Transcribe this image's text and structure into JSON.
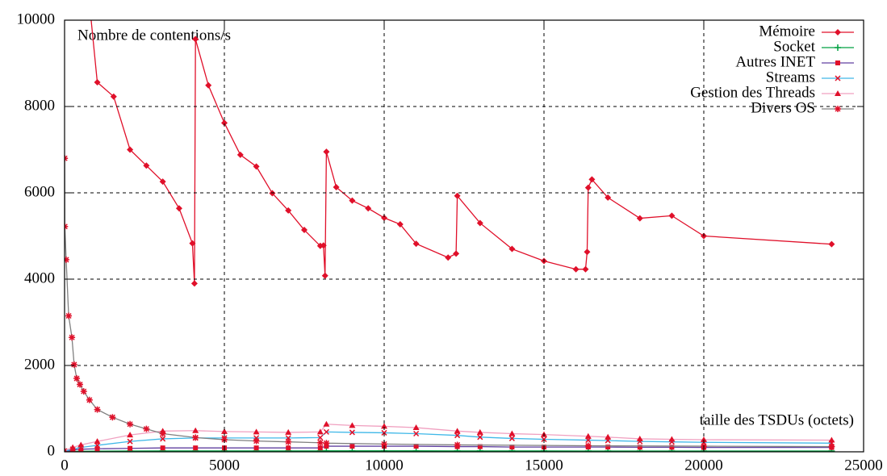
{
  "chart_data": {
    "type": "line",
    "annotations": [
      "Nombre de contentions/s",
      "taille des TSDUs (octets)"
    ],
    "xlim": [
      0,
      25000
    ],
    "ylim": [
      0,
      10000
    ],
    "xticks": [
      0,
      5000,
      10000,
      15000,
      20000,
      25000
    ],
    "yticks": [
      0,
      2000,
      4000,
      6000,
      8000,
      10000
    ],
    "grid": true,
    "legend": "top-right",
    "series": [
      {
        "name": "Mémoire",
        "color": "#e0102a",
        "marker": "diamond",
        "marker_color": "#e0102a",
        "x": [
          512,
          1024,
          1536,
          2048,
          2560,
          3072,
          3584,
          4000,
          4064,
          4096,
          4500,
          5000,
          5500,
          6000,
          6500,
          7000,
          7500,
          8000,
          8100,
          8150,
          8192,
          8500,
          9000,
          9500,
          10000,
          10500,
          11000,
          12000,
          12250,
          12288,
          13000,
          14000,
          15000,
          16000,
          16300,
          16350,
          16384,
          16500,
          17000,
          18000,
          19000,
          20000,
          24000
        ],
        "values": [
          12400,
          8560,
          8230,
          7000,
          6630,
          6260,
          5640,
          4830,
          3900,
          9560,
          8490,
          7620,
          6880,
          6610,
          5990,
          5590,
          5140,
          4770,
          4780,
          4080,
          6950,
          6130,
          5820,
          5640,
          5420,
          5270,
          4820,
          4500,
          4590,
          5930,
          5300,
          4700,
          4420,
          4230,
          4230,
          4630,
          6120,
          6310,
          5890,
          5410,
          5470,
          5000,
          4810
        ]
      },
      {
        "name": "Socket",
        "color": "#00a040",
        "marker": "plus",
        "marker_color": "#00a040",
        "x": [
          0,
          256,
          512,
          1024,
          2048,
          3072,
          4096,
          5000,
          6000,
          7000,
          8000,
          8192,
          9000,
          10000,
          11000,
          12288,
          13000,
          14000,
          15000,
          16384,
          17000,
          18000,
          19000,
          20000,
          24000
        ],
        "values": [
          5,
          10,
          12,
          15,
          18,
          20,
          20,
          20,
          20,
          20,
          20,
          22,
          22,
          22,
          22,
          20,
          20,
          20,
          20,
          18,
          18,
          18,
          18,
          18,
          18
        ]
      },
      {
        "name": "Autres INET",
        "color": "#6040a0",
        "marker": "square",
        "marker_color": "#e0102a",
        "x": [
          0,
          256,
          512,
          1024,
          2048,
          3072,
          4096,
          5000,
          6000,
          7000,
          8000,
          8192,
          9000,
          10000,
          11000,
          12288,
          13000,
          14000,
          15000,
          16384,
          17000,
          18000,
          19000,
          20000,
          24000
        ],
        "values": [
          10,
          40,
          60,
          70,
          80,
          90,
          90,
          90,
          90,
          90,
          90,
          130,
          130,
          130,
          130,
          120,
          120,
          110,
          110,
          110,
          110,
          105,
          105,
          100,
          100
        ]
      },
      {
        "name": "Streams",
        "color": "#40b8e8",
        "marker": "cross",
        "marker_color": "#e0102a",
        "x": [
          0,
          256,
          512,
          1024,
          2048,
          3072,
          4096,
          5000,
          6000,
          7000,
          8000,
          8192,
          9000,
          10000,
          11000,
          12288,
          13000,
          14000,
          15000,
          16384,
          17000,
          18000,
          19000,
          20000,
          24000
        ],
        "values": [
          20,
          60,
          100,
          150,
          240,
          300,
          320,
          320,
          320,
          320,
          330,
          460,
          450,
          440,
          420,
          380,
          340,
          310,
          290,
          270,
          260,
          240,
          230,
          220,
          200
        ]
      },
      {
        "name": "Gestion des Threads",
        "color": "#f0a0c0",
        "marker": "triangle",
        "marker_color": "#e0102a",
        "x": [
          0,
          256,
          512,
          1024,
          2048,
          3072,
          4096,
          5000,
          6000,
          7000,
          8000,
          8192,
          9000,
          10000,
          11000,
          12288,
          13000,
          14000,
          15000,
          16384,
          17000,
          18000,
          19000,
          20000,
          24000
        ],
        "values": [
          30,
          100,
          160,
          240,
          390,
          480,
          490,
          470,
          460,
          450,
          460,
          640,
          610,
          590,
          560,
          480,
          450,
          420,
          400,
          360,
          340,
          300,
          290,
          280,
          270
        ]
      },
      {
        "name": "Divers OS",
        "color": "#808080",
        "marker": "star",
        "marker_color": "#e0102a",
        "x": [
          4,
          8,
          50,
          128,
          230,
          300,
          380,
          480,
          600,
          780,
          1024,
          1500,
          2048,
          2560,
          3072,
          4096,
          5000,
          6000,
          7000,
          8000,
          8192,
          10000,
          12288,
          16384,
          20000,
          24000
        ],
        "values": [
          6800,
          5220,
          4450,
          3150,
          2650,
          2020,
          1700,
          1560,
          1400,
          1200,
          980,
          800,
          640,
          530,
          420,
          330,
          280,
          250,
          230,
          210,
          200,
          180,
          160,
          140,
          130,
          120
        ]
      }
    ]
  }
}
